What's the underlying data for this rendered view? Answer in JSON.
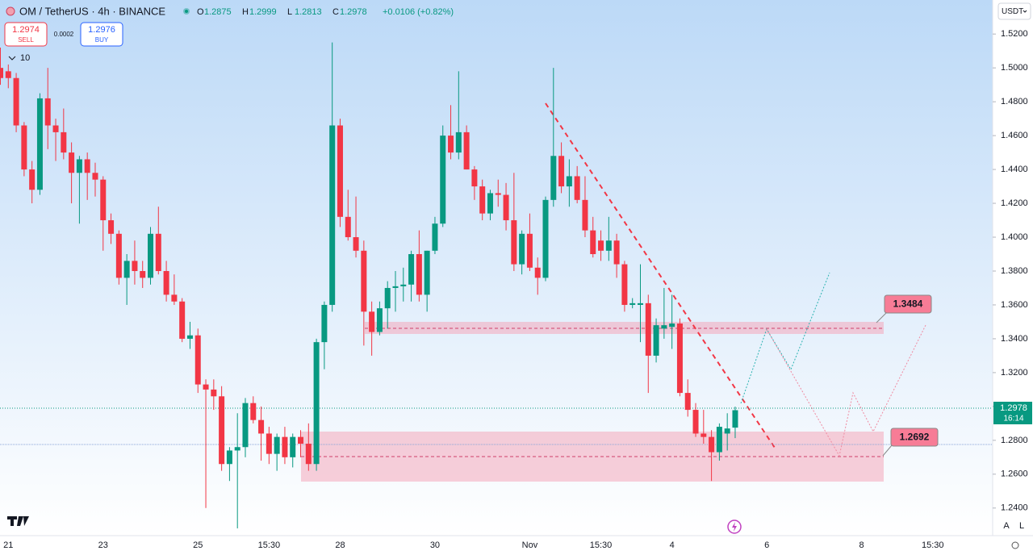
{
  "chart_data": {
    "type": "candlestick",
    "title": "OM / TetherUS · 4h · BINANCE",
    "ohlc_legend": [
      {
        "label": "O",
        "value": "1.2875"
      },
      {
        "label": "H",
        "value": "1.2999"
      },
      {
        "label": "L",
        "value": "1.2813"
      },
      {
        "label": "C",
        "value": "1.2978"
      }
    ],
    "change": "+0.0106 (+0.82%)",
    "sell": {
      "price": "1.2974",
      "label": "SELL"
    },
    "spread": "0.0002",
    "buy": {
      "price": "1.2976",
      "label": "BUY"
    },
    "indicators_count": "10",
    "currency": "USDT",
    "last_price": "1.2978",
    "countdown": "16:14",
    "zone_labels": [
      "1.3484",
      "1.2692"
    ],
    "scale_buttons": [
      "A",
      "L"
    ],
    "up_color": "#089981",
    "down_color": "#f23645",
    "ylim": [
      1.2237,
      1.5401
    ],
    "yticks": [
      {
        "value": 1.24,
        "label": "1.2400"
      },
      {
        "value": 1.26,
        "label": "1.2600"
      },
      {
        "value": 1.28,
        "label": "1.2800"
      },
      {
        "value": 1.3,
        "label": "1.3000"
      },
      {
        "value": 1.32,
        "label": "1.3200"
      },
      {
        "value": 1.34,
        "label": "1.3400"
      },
      {
        "value": 1.36,
        "label": "1.3600"
      },
      {
        "value": 1.38,
        "label": "1.3800"
      },
      {
        "value": 1.4,
        "label": "1.4000"
      },
      {
        "value": 1.42,
        "label": "1.4200"
      },
      {
        "value": 1.44,
        "label": "1.4400"
      },
      {
        "value": 1.46,
        "label": "1.4600"
      },
      {
        "value": 1.48,
        "label": "1.4800"
      },
      {
        "value": 1.5,
        "label": "1.5000"
      },
      {
        "value": 1.52,
        "label": "1.5200"
      }
    ],
    "categories": [
      null,
      "21",
      null,
      null,
      null,
      null,
      null,
      null,
      null,
      null,
      null,
      null,
      null,
      "23",
      null,
      null,
      null,
      null,
      null,
      null,
      null,
      null,
      null,
      null,
      null,
      "25",
      null,
      null,
      null,
      null,
      null,
      null,
      null,
      null,
      "15:30",
      null,
      null,
      null,
      null,
      null,
      null,
      null,
      null,
      "28",
      null,
      null,
      null,
      null,
      null,
      null,
      null,
      null,
      null,
      null,
      null,
      "30",
      null,
      null,
      null,
      null,
      null,
      null,
      null,
      null,
      null,
      null,
      null,
      "Nov",
      null,
      null,
      null,
      null,
      null,
      null,
      null,
      null,
      "15:30",
      null,
      null,
      null,
      null,
      null,
      null,
      null,
      null,
      "4",
      null,
      null,
      null,
      null,
      null,
      null,
      null,
      null,
      null,
      null,
      null,
      "6",
      null,
      null,
      null,
      null,
      null,
      null,
      null,
      null,
      null,
      null,
      null,
      "8",
      null,
      null,
      null,
      null,
      null,
      null,
      null,
      null,
      "15:30"
    ],
    "open": [
      1.5,
      1.498,
      1.494,
      1.466,
      1.44,
      1.428,
      1.482,
      1.466,
      1.462,
      1.45,
      1.438,
      1.446,
      1.438,
      1.434,
      1.41,
      1.402,
      1.376,
      1.386,
      1.38,
      1.376,
      1.402,
      1.38,
      1.366,
      1.362,
      1.34,
      1.342,
      1.313,
      1.31,
      1.306,
      1.266,
      1.274,
      1.276,
      1.302,
      1.292,
      1.284,
      1.272,
      1.282,
      1.27,
      1.282,
      1.278,
      1.266,
      1.338,
      1.36,
      1.466,
      1.412,
      1.4,
      1.392,
      1.356,
      1.344,
      1.358,
      1.37,
      1.371,
      1.372,
      1.39,
      1.366,
      1.392,
      1.408,
      1.46,
      1.45,
      1.462,
      1.44,
      1.43,
      1.414,
      1.426,
      1.425,
      1.41,
      1.384,
      1.402,
      1.382,
      1.376,
      1.422,
      1.448,
      1.43,
      1.436,
      1.422,
      1.404,
      1.398,
      1.392,
      1.398,
      1.384,
      1.36,
      1.36,
      1.361,
      1.33,
      1.346,
      1.347,
      1.349,
      1.308,
      1.298,
      1.284,
      1.282,
      1.273,
      1.284,
      1.2875,
      null,
      null,
      null,
      null,
      null,
      null,
      null,
      null,
      null,
      null,
      null,
      null,
      null,
      null,
      null,
      null,
      null,
      null,
      null,
      null,
      null,
      null,
      null,
      null,
      null
    ],
    "high": [
      1.512,
      1.502,
      1.497,
      1.468,
      1.445,
      1.485,
      1.5,
      1.47,
      1.476,
      1.456,
      1.448,
      1.45,
      1.444,
      1.436,
      1.414,
      1.404,
      1.39,
      1.398,
      1.386,
      1.406,
      1.418,
      1.386,
      1.378,
      1.364,
      1.35,
      1.346,
      1.316,
      1.316,
      1.312,
      1.276,
      1.296,
      1.305,
      1.306,
      1.3,
      1.288,
      1.284,
      1.288,
      1.284,
      1.286,
      1.29,
      1.34,
      1.362,
      1.515,
      1.47,
      1.428,
      1.424,
      1.398,
      1.362,
      1.362,
      1.374,
      1.38,
      1.382,
      1.392,
      1.404,
      1.392,
      1.412,
      1.466,
      1.478,
      1.498,
      1.466,
      1.442,
      1.434,
      1.428,
      1.434,
      1.432,
      1.438,
      1.404,
      1.414,
      1.388,
      1.424,
      1.5,
      1.456,
      1.446,
      1.442,
      1.436,
      1.412,
      1.404,
      1.412,
      1.402,
      1.386,
      1.364,
      1.384,
      1.366,
      1.352,
      1.37,
      1.366,
      1.352,
      1.316,
      1.302,
      1.298,
      1.286,
      1.29,
      1.296,
      1.2999,
      null,
      null,
      null,
      null,
      null,
      null,
      null,
      null,
      null,
      null,
      null,
      null,
      null,
      null,
      null,
      null,
      null,
      null,
      null,
      null,
      null,
      null,
      null,
      null,
      null
    ],
    "low": [
      1.49,
      1.488,
      1.462,
      1.436,
      1.42,
      1.425,
      1.452,
      1.445,
      1.446,
      1.42,
      1.408,
      1.422,
      1.424,
      1.392,
      1.396,
      1.372,
      1.36,
      1.372,
      1.37,
      1.372,
      1.378,
      1.362,
      1.36,
      1.338,
      1.334,
      1.308,
      1.24,
      1.298,
      1.262,
      1.256,
      1.228,
      1.27,
      1.29,
      1.268,
      1.266,
      1.262,
      1.266,
      1.264,
      1.27,
      1.262,
      1.262,
      1.322,
      1.356,
      1.406,
      1.398,
      1.388,
      1.336,
      1.33,
      1.342,
      1.346,
      1.356,
      1.362,
      1.362,
      1.362,
      1.356,
      1.39,
      1.406,
      1.446,
      1.446,
      1.44,
      1.422,
      1.41,
      1.41,
      1.418,
      1.404,
      1.38,
      1.378,
      1.38,
      1.366,
      1.374,
      1.418,
      1.426,
      1.418,
      1.42,
      1.4,
      1.388,
      1.386,
      1.386,
      1.376,
      1.356,
      1.358,
      1.338,
      1.308,
      1.326,
      1.34,
      1.334,
      1.306,
      1.294,
      1.282,
      1.278,
      1.256,
      1.268,
      1.274,
      1.2813,
      null,
      null,
      null,
      null,
      null,
      null,
      null,
      null,
      null,
      null,
      null,
      null,
      null,
      null,
      null,
      null,
      null,
      null,
      null,
      null,
      null,
      null,
      null,
      null,
      null
    ],
    "close": [
      1.494,
      1.494,
      1.466,
      1.44,
      1.428,
      1.482,
      1.466,
      1.462,
      1.45,
      1.438,
      1.446,
      1.438,
      1.434,
      1.41,
      1.402,
      1.376,
      1.386,
      1.38,
      1.376,
      1.402,
      1.38,
      1.366,
      1.362,
      1.34,
      1.342,
      1.313,
      1.31,
      1.306,
      1.266,
      1.274,
      1.276,
      1.302,
      1.292,
      1.284,
      1.272,
      1.282,
      1.27,
      1.282,
      1.278,
      1.266,
      1.338,
      1.36,
      1.466,
      1.412,
      1.4,
      1.392,
      1.356,
      1.344,
      1.358,
      1.37,
      1.371,
      1.372,
      1.39,
      1.366,
      1.392,
      1.408,
      1.46,
      1.45,
      1.462,
      1.44,
      1.43,
      1.414,
      1.426,
      1.425,
      1.41,
      1.384,
      1.402,
      1.382,
      1.376,
      1.422,
      1.448,
      1.43,
      1.436,
      1.422,
      1.404,
      1.39,
      1.392,
      1.398,
      1.384,
      1.36,
      1.361,
      1.361,
      1.33,
      1.348,
      1.348,
      1.349,
      1.308,
      1.298,
      1.284,
      1.282,
      1.273,
      1.288,
      1.287,
      1.2978,
      null,
      null,
      null,
      null,
      null,
      null,
      null,
      null,
      null,
      null,
      null,
      null,
      null,
      null,
      null,
      null,
      null,
      null,
      null,
      null,
      null,
      null,
      null,
      null,
      null
    ]
  }
}
